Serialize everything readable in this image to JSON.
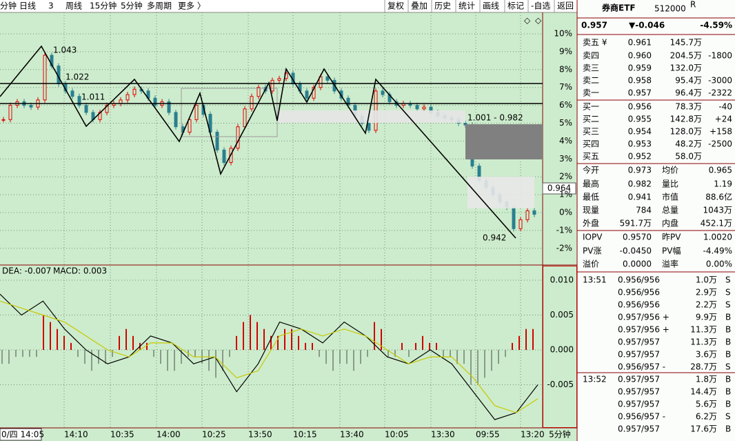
{
  "toolbar": {
    "left": [
      "分钟",
      "日线",
      "3",
      "周线",
      "15分钟",
      "5分钟",
      "多周期",
      "更多 〉"
    ],
    "right": [
      "复权",
      "叠加",
      "历史",
      "统计",
      "画线",
      "标记",
      "-自选",
      "返回"
    ]
  },
  "price_chart": {
    "yticks": [
      {
        "value": 10,
        "label": "10%"
      },
      {
        "value": 9,
        "label": "9%"
      },
      {
        "value": 8,
        "label": "8%"
      },
      {
        "value": 7,
        "label": "7%"
      },
      {
        "value": 6,
        "label": "6%"
      },
      {
        "value": 5,
        "label": "5%"
      },
      {
        "value": 4,
        "label": "4%"
      },
      {
        "value": 3,
        "label": "3%"
      },
      {
        "value": 2,
        "label": "2%"
      },
      {
        "value": 1,
        "label": "1%"
      },
      {
        "value": 0,
        "label": "0%"
      },
      {
        "value": -1,
        "label": "-1%"
      },
      {
        "value": -2,
        "label": "-2%"
      }
    ],
    "closes": [
      5.2,
      6.0,
      6.2,
      6.0,
      5.9,
      6.3,
      8.8,
      8.2,
      7.2,
      6.8,
      6.5,
      6.0,
      5.6,
      5.2,
      5.6,
      6.0,
      6.1,
      6.3,
      6.6,
      6.9,
      6.8,
      6.4,
      6.0,
      6.2,
      5.6,
      4.8,
      4.5,
      5.2,
      6.0,
      5.5,
      4.5,
      3.5,
      2.8,
      3.6,
      4.8,
      5.8,
      6.5,
      7.0,
      6.8,
      7.4,
      7.5,
      7.8,
      7.2,
      6.8,
      6.4,
      7.0,
      7.6,
      7.4,
      6.8,
      6.4,
      6.0,
      5.4,
      5.0,
      4.6,
      6.8,
      6.6,
      6.2,
      6.0,
      6.1,
      6.0,
      5.8,
      5.9,
      5.6,
      5.4,
      5.3,
      5.2,
      5.0,
      4.9,
      2.6,
      1.8,
      1.4,
      1.0,
      0.6,
      0.3,
      -0.9,
      -0.4,
      0.1,
      -0.1
    ],
    "annotations": [
      "1.043",
      "1.022",
      "1.011",
      "1.001 - 0.982",
      "0.942"
    ],
    "last_price": "0.964"
  },
  "macd": {
    "legend": [
      "DEA: -0.007",
      "MACD: 0.003"
    ],
    "yticks": [
      {
        "value": 0.01,
        "label": "0.010"
      },
      0.005,
      {
        "value": 0,
        "label": "0.000"
      },
      -0.005
    ],
    "hist": [
      -0.002,
      -0.002,
      -0.001,
      -0.001,
      -0.001,
      -0.001,
      0.005,
      0.004,
      0.003,
      0.002,
      0.001,
      -0.001,
      -0.002,
      -0.003,
      -0.002,
      -0.002,
      -0.001,
      0.002,
      0.003,
      0.002,
      0.001,
      0.001,
      -0.001,
      -0.002,
      -0.003,
      -0.003,
      -0.002,
      -0.001,
      -0.001,
      -0.002,
      -0.003,
      -0.004,
      -0.003,
      -0.001,
      0.002,
      0.004,
      0.005,
      0.004,
      0.003,
      0.002,
      0.002,
      0.003,
      0.003,
      0.002,
      0.001,
      0.001,
      -0.001,
      -0.002,
      -0.003,
      -0.002,
      -0.002,
      -0.003,
      -0.002,
      -0.001,
      0.004,
      0.003,
      -0.001,
      -0.001,
      0.001,
      -0.001,
      0.001,
      0.002,
      0.001,
      0.001,
      -0.001,
      -0.001,
      -0.002,
      -0.002,
      -0.005,
      -0.005,
      -0.004,
      -0.003,
      -0.002,
      -0.001,
      0.001,
      0.002,
      0.003,
      0.003
    ],
    "dif": [
      0.008,
      0.005,
      0.007,
      0.003,
      0.0,
      -0.002,
      -0.001,
      0.002,
      0.001,
      -0.002,
      -0.001,
      -0.006,
      -0.002,
      0.004,
      0.003,
      0.001,
      0.004,
      0.002,
      -0.001,
      -0.002,
      0.0,
      -0.002,
      -0.006,
      -0.01,
      -0.009,
      -0.005
    ],
    "dea": [
      0.007,
      0.006,
      0.005,
      0.004,
      0.002,
      0.0,
      -0.001,
      0.001,
      0.001,
      -0.001,
      -0.001,
      -0.004,
      -0.003,
      0.002,
      0.003,
      0.002,
      0.003,
      0.002,
      0.0,
      -0.002,
      -0.001,
      -0.001,
      -0.004,
      -0.008,
      -0.009,
      -0.007
    ]
  },
  "time_axis": {
    "labels": [
      "0/四 14:05",
      "14:10",
      "10:35",
      "14:00",
      "10:25",
      "13:50",
      "10:15",
      "13:40",
      "10:05",
      "13:30",
      "09:55",
      "13:20"
    ],
    "period": "5分钟"
  },
  "quote": {
    "name": "券商ETF",
    "code": "512000",
    "flag": "R",
    "price": "0.957",
    "change": "▼-0.046",
    "change_pct": "-4.59%"
  },
  "order_book": [
    {
      "label": "卖五 ¥",
      "price": "0.961",
      "volume": "145.7万"
    },
    {
      "label": "卖四",
      "price": "0.960",
      "volume": "204.5万",
      "change": "-1800"
    },
    {
      "label": "卖三",
      "price": "0.959",
      "volume": "132.0万"
    },
    {
      "label": "卖二",
      "price": "0.958",
      "volume": "95.4万",
      "change": "-3000"
    },
    {
      "label": "卖一",
      "price": "0.957",
      "volume": "96.4万",
      "change": "-2322"
    },
    {
      "label": "买一",
      "price": "0.956",
      "volume": "78.3万",
      "change": "-40"
    },
    {
      "label": "买二",
      "price": "0.955",
      "volume": "142.8万",
      "change": "+24"
    },
    {
      "label": "买三",
      "price": "0.954",
      "volume": "128.0万",
      "change": "+158"
    },
    {
      "label": "买四",
      "price": "0.953",
      "volume": "48.2万",
      "change": "-2500"
    },
    {
      "label": "买五",
      "price": "0.952",
      "volume": "58.0万"
    }
  ],
  "stats": [
    {
      "label1": "今开",
      "value1": "0.973",
      "label2": "均价",
      "value2": "0.965"
    },
    {
      "label1": "最高",
      "value1": "0.982",
      "label2": "量比",
      "value2": "1.19",
      "color2": "#e00000"
    },
    {
      "label1": "最低",
      "value1": "0.941",
      "label2": "市值",
      "value2": "88.6亿"
    },
    {
      "label1": "现量",
      "value1": "784",
      "color1": "#e00000",
      "label2": "总量",
      "value2": "1043万"
    },
    {
      "label1": "外盘",
      "value1": "591.7万",
      "color1": "#e00000",
      "label2": "内盘",
      "value2": "452.1万"
    },
    {
      "label1": "IOPV",
      "value1": "0.9570",
      "label2": "昨PV",
      "value2": "1.0020"
    },
    {
      "label1": "PV涨",
      "value1": "-0.0450",
      "label2": "PV幅",
      "value2": "-4.49%"
    },
    {
      "label1": "溢价",
      "value1": "0.0000",
      "color1": "#a000c8",
      "label2": "溢率",
      "value2": "0.00%",
      "color2": "#a000c8"
    }
  ],
  "trades": [
    {
      "time": "13:51",
      "price": "0.956",
      "bid": "/956",
      "volume": "1.0万",
      "side": "S"
    },
    {
      "price": "0.956",
      "bid": "/956",
      "volume": "2.9万",
      "side": "S"
    },
    {
      "price": "0.956",
      "bid": "/956",
      "volume": "2.2万",
      "side": "S"
    },
    {
      "price": "0.957",
      "bid": "/956 +",
      "volume": "9.9万",
      "side": "B"
    },
    {
      "price": "0.957",
      "bid": "/956 +",
      "volume": "11.3万",
      "side": "B"
    },
    {
      "price": "0.957",
      "bid": "/957",
      "volume": "11.3万",
      "side": "B"
    },
    {
      "price": "0.957",
      "bid": "/957",
      "volume": "3.6万",
      "side": "B"
    },
    {
      "price": "0.956",
      "bid": "/957 -",
      "volume": "28.7万",
      "side": "S"
    },
    {
      "time": "13:52",
      "price": "0.957",
      "bid": "/957",
      "volume": "1.8万",
      "side": "B"
    },
    {
      "price": "0.957",
      "bid": "/957",
      "volume": "14.4万",
      "side": "B"
    },
    {
      "price": "0.957",
      "bid": "/957",
      "volume": "5.6万",
      "side": "B"
    },
    {
      "price": "0.956",
      "bid": "/957 -",
      "volume": "6.2万",
      "side": "S"
    },
    {
      "price": "0.957",
      "bid": "/957",
      "volume": "17.6万",
      "side": "B"
    }
  ]
}
